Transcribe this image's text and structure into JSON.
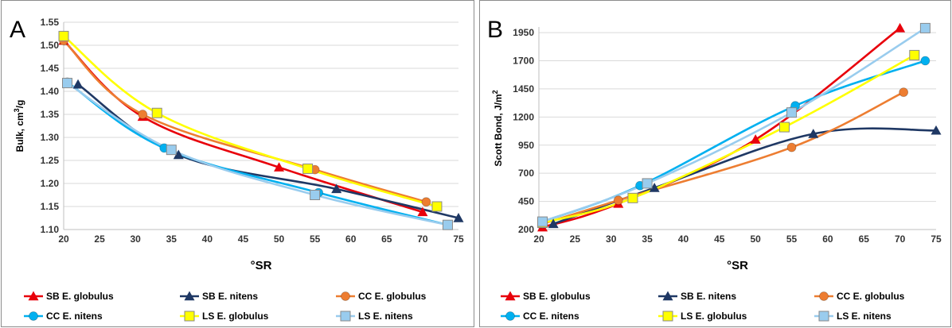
{
  "chart_data": [
    {
      "type": "line",
      "panel_label": "A",
      "xlabel": "°SR",
      "ylabel": {
        "main": "Bulk, cm",
        "sup": "3",
        "tail": "/g"
      },
      "xlim": [
        20,
        75
      ],
      "ylim": [
        1.1,
        1.55
      ],
      "xticks": [
        "20",
        "25",
        "30",
        "35",
        "40",
        "45",
        "50",
        "55",
        "60",
        "65",
        "70",
        "75"
      ],
      "yticks": [
        "1.10",
        "1.15",
        "1.20",
        "1.25",
        "1.30",
        "1.35",
        "1.40",
        "1.45",
        "1.50",
        "1.55"
      ],
      "series": [
        {
          "name": "SB E. globulus",
          "color": "#e8000b",
          "marker": "triangle",
          "x": [
            20,
            31,
            50,
            70
          ],
          "y": [
            1.51,
            1.345,
            1.235,
            1.138
          ]
        },
        {
          "name": "SB E. nitens",
          "color": "#1f3864",
          "marker": "triangle",
          "x": [
            22,
            36,
            58,
            75
          ],
          "y": [
            1.415,
            1.262,
            1.188,
            1.125
          ]
        },
        {
          "name": "CC E. globulus",
          "color": "#ed7d31",
          "marker": "circle",
          "x": [
            20,
            31,
            55,
            70.5
          ],
          "y": [
            1.51,
            1.35,
            1.23,
            1.16
          ]
        },
        {
          "name": "CC E. nitens",
          "color": "#00b0f0",
          "marker": "circle",
          "x": [
            20.5,
            34,
            55.5,
            73.5
          ],
          "y": [
            1.42,
            1.277,
            1.18,
            1.11
          ]
        },
        {
          "name": "LS E. globulus",
          "color": "#ffff00",
          "marker": "square",
          "x": [
            20,
            33,
            54,
            72
          ],
          "y": [
            1.52,
            1.353,
            1.232,
            1.15
          ]
        },
        {
          "name": "LS E. nitens",
          "color": "#99ccee",
          "marker": "square",
          "x": [
            20.5,
            35,
            55,
            73.5
          ],
          "y": [
            1.418,
            1.273,
            1.175,
            1.11
          ]
        }
      ]
    },
    {
      "type": "line",
      "panel_label": "B",
      "xlabel": "°SR",
      "ylabel": {
        "main": "Scott Bond, J/m",
        "sup": "2",
        "tail": ""
      },
      "xlim": [
        20,
        75
      ],
      "ylim": [
        200,
        2000
      ],
      "xticks": [
        "20",
        "25",
        "30",
        "35",
        "40",
        "45",
        "50",
        "55",
        "60",
        "65",
        "70",
        "75"
      ],
      "yticks": [
        "200",
        "450",
        "700",
        "950",
        "1200",
        "1450",
        "1700",
        "1950"
      ],
      "series": [
        {
          "name": "SB E. globulus",
          "color": "#e8000b",
          "marker": "triangle",
          "x": [
            20.5,
            31,
            50,
            70
          ],
          "y": [
            220,
            430,
            1000,
            1990
          ]
        },
        {
          "name": "SB E. nitens",
          "color": "#1f3864",
          "marker": "triangle",
          "x": [
            22,
            36,
            58,
            75
          ],
          "y": [
            250,
            570,
            1050,
            1080
          ]
        },
        {
          "name": "CC E. globulus",
          "color": "#ed7d31",
          "marker": "circle",
          "x": [
            20.5,
            31,
            55,
            70.5
          ],
          "y": [
            250,
            460,
            930,
            1420
          ]
        },
        {
          "name": "CC E. nitens",
          "color": "#00b0f0",
          "marker": "circle",
          "x": [
            20.5,
            34,
            55.5,
            73.5
          ],
          "y": [
            270,
            590,
            1300,
            1700
          ]
        },
        {
          "name": "LS E. globulus",
          "color": "#ffff00",
          "marker": "square",
          "x": [
            20.5,
            33,
            54,
            72
          ],
          "y": [
            260,
            480,
            1110,
            1750
          ]
        },
        {
          "name": "LS E. nitens",
          "color": "#99ccee",
          "marker": "square",
          "x": [
            20.5,
            35,
            55,
            73.5
          ],
          "y": [
            270,
            610,
            1240,
            1990
          ]
        }
      ]
    }
  ]
}
